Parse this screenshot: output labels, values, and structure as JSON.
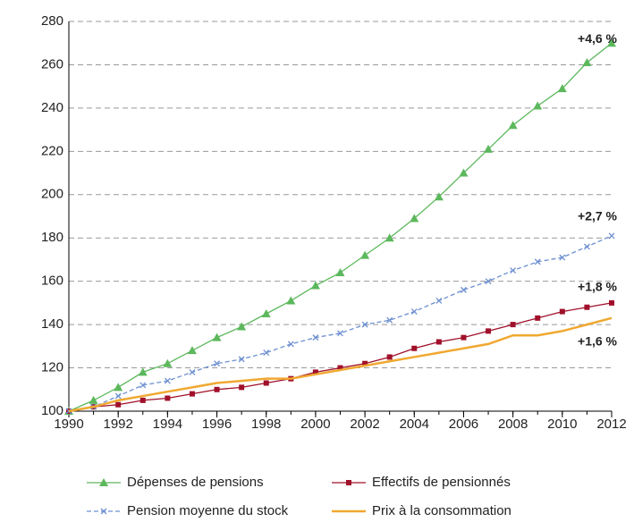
{
  "chart_data": {
    "type": "line",
    "x": [
      1990,
      1991,
      1992,
      1993,
      1994,
      1995,
      1996,
      1997,
      1998,
      1999,
      2000,
      2001,
      2002,
      2003,
      2004,
      2005,
      2006,
      2007,
      2008,
      2009,
      2010,
      2011,
      2012
    ],
    "xlim": [
      1990,
      2012
    ],
    "xticks": [
      1990,
      1992,
      1994,
      1996,
      1998,
      2000,
      2002,
      2004,
      2006,
      2008,
      2010,
      2012
    ],
    "ylim": [
      100,
      280
    ],
    "yticks": [
      100,
      120,
      140,
      160,
      180,
      200,
      220,
      240,
      260,
      280
    ],
    "grid": true,
    "legend": "bottom",
    "series": [
      {
        "name": "Dépenses de pensions",
        "color": "#5cb85c",
        "marker": "triangle",
        "dashed": false,
        "end_label": "+4,6 %",
        "values": [
          100,
          105,
          111,
          118,
          122,
          128,
          134,
          139,
          145,
          151,
          158,
          164,
          172,
          180,
          189,
          199,
          210,
          221,
          232,
          241,
          249,
          261,
          270
        ]
      },
      {
        "name": "Effectifs de pensionnés",
        "color": "#a0102a",
        "marker": "square",
        "dashed": false,
        "end_label": "+1,8 %",
        "values": [
          100,
          102,
          103,
          105,
          106,
          108,
          110,
          111,
          113,
          115,
          118,
          120,
          122,
          125,
          129,
          132,
          134,
          137,
          140,
          143,
          146,
          148,
          150
        ]
      },
      {
        "name": "Pension moyenne du stock",
        "color": "#6c8fd0",
        "marker": "x",
        "dashed": true,
        "end_label": "+2,7 %",
        "values": [
          100,
          102,
          107,
          112,
          114,
          118,
          122,
          124,
          127,
          131,
          134,
          136,
          140,
          142,
          146,
          151,
          156,
          160,
          165,
          169,
          171,
          176,
          181
        ]
      },
      {
        "name": "Prix à la consommation",
        "color": "#f0a830",
        "marker": "none",
        "dashed": false,
        "end_label": "+1,6 %",
        "values": [
          100,
          102,
          105,
          107,
          109,
          111,
          113,
          114,
          115,
          115,
          117,
          119,
          121,
          123,
          125,
          127,
          129,
          131,
          135,
          135,
          137,
          140,
          143
        ]
      }
    ]
  }
}
